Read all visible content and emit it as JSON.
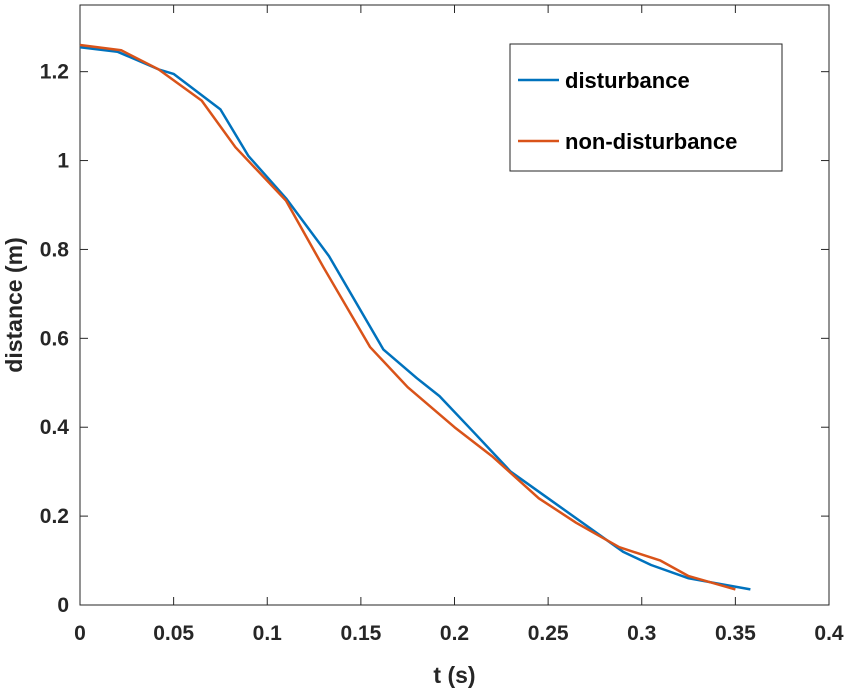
{
  "chart_data": {
    "type": "line",
    "title": "",
    "xlabel": "t (s)",
    "ylabel": "distance (m)",
    "xlim": [
      0,
      0.4
    ],
    "ylim": [
      0,
      1.35
    ],
    "xticks": [
      0,
      0.05,
      0.1,
      0.15,
      0.2,
      0.25,
      0.3,
      0.35,
      0.4
    ],
    "xtick_labels": [
      "0",
      "0.05",
      "0.1",
      "0.15",
      "0.2",
      "0.25",
      "0.3",
      "0.35",
      "0.4"
    ],
    "yticks": [
      0,
      0.2,
      0.4,
      0.6,
      0.8,
      1.0,
      1.2
    ],
    "ytick_labels": [
      "0",
      "0.2",
      "0.4",
      "0.6",
      "0.8",
      "1",
      "1.2"
    ],
    "grid": false,
    "legend_position": "top-right",
    "series": [
      {
        "name": "disturbance",
        "color": "#0072BD",
        "x": [
          0,
          0.02,
          0.042,
          0.05,
          0.075,
          0.09,
          0.11,
          0.133,
          0.162,
          0.18,
          0.192,
          0.21,
          0.23,
          0.25,
          0.27,
          0.29,
          0.305,
          0.325,
          0.358
        ],
        "y": [
          1.255,
          1.245,
          1.205,
          1.195,
          1.115,
          1.01,
          0.915,
          0.785,
          0.575,
          0.51,
          0.47,
          0.39,
          0.3,
          0.24,
          0.18,
          0.12,
          0.09,
          0.06,
          0.035
        ]
      },
      {
        "name": "non-disturbance",
        "color": "#D95319",
        "x": [
          0,
          0.022,
          0.042,
          0.065,
          0.083,
          0.11,
          0.13,
          0.155,
          0.175,
          0.2,
          0.22,
          0.245,
          0.265,
          0.288,
          0.31,
          0.325,
          0.35
        ],
        "y": [
          1.26,
          1.248,
          1.205,
          1.135,
          1.03,
          0.91,
          0.76,
          0.58,
          0.49,
          0.4,
          0.335,
          0.24,
          0.185,
          0.13,
          0.1,
          0.065,
          0.035
        ]
      }
    ]
  }
}
